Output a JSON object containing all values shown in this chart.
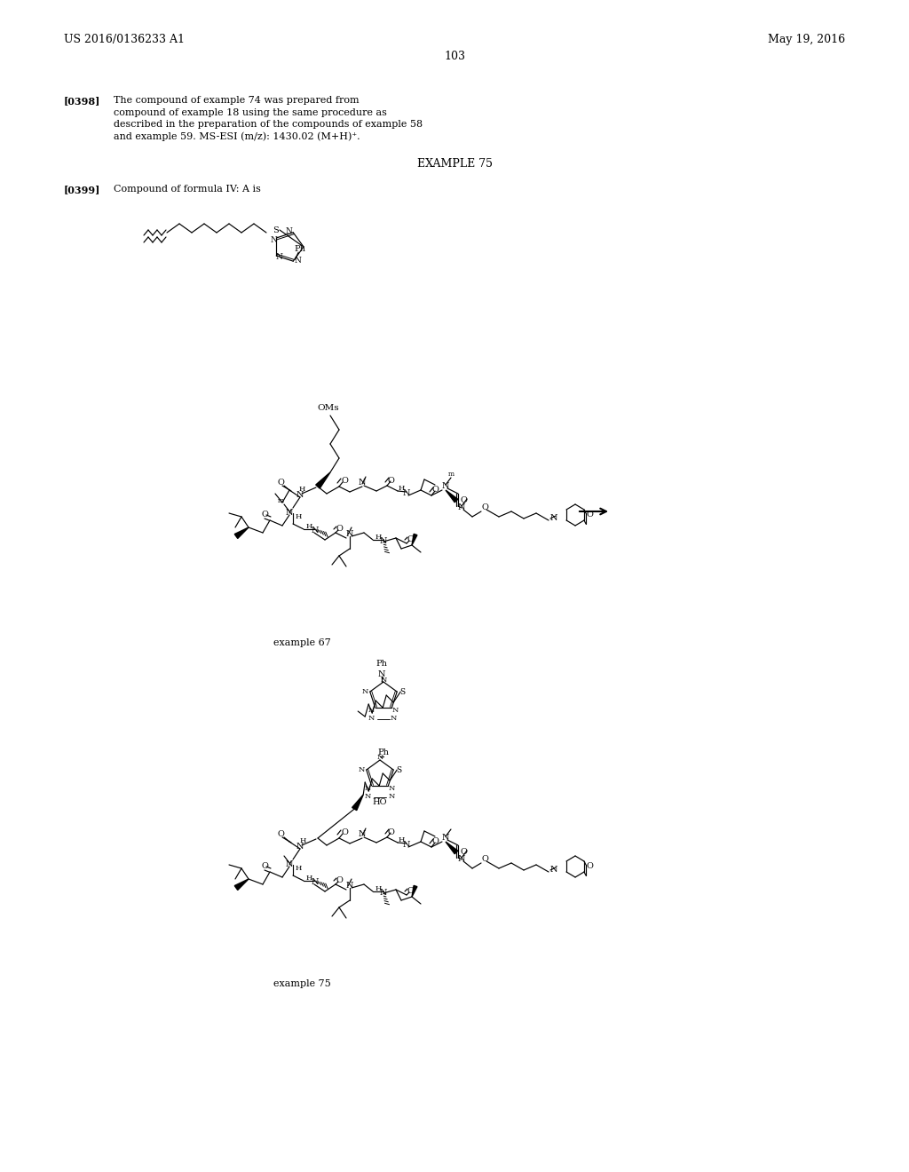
{
  "background_color": "#ffffff",
  "header_left": "US 2016/0136233 A1",
  "header_right": "May 19, 2016",
  "page_number": "103",
  "para_0398_label": "[0398]",
  "para_0398_lines": [
    "The compound of example 74 was prepared from",
    "compound of example 18 using the same procedure as",
    "described in the preparation of the compounds of example 58",
    "and example 59. MS-ESI (m/z): 1430.02 (M+H)⁺."
  ],
  "example75_heading": "EXAMPLE 75",
  "para_0399_label": "[0399]",
  "para_0399_text": "Compound of formula IV: A is",
  "example67_label": "example 67",
  "example75_label": "example 75"
}
